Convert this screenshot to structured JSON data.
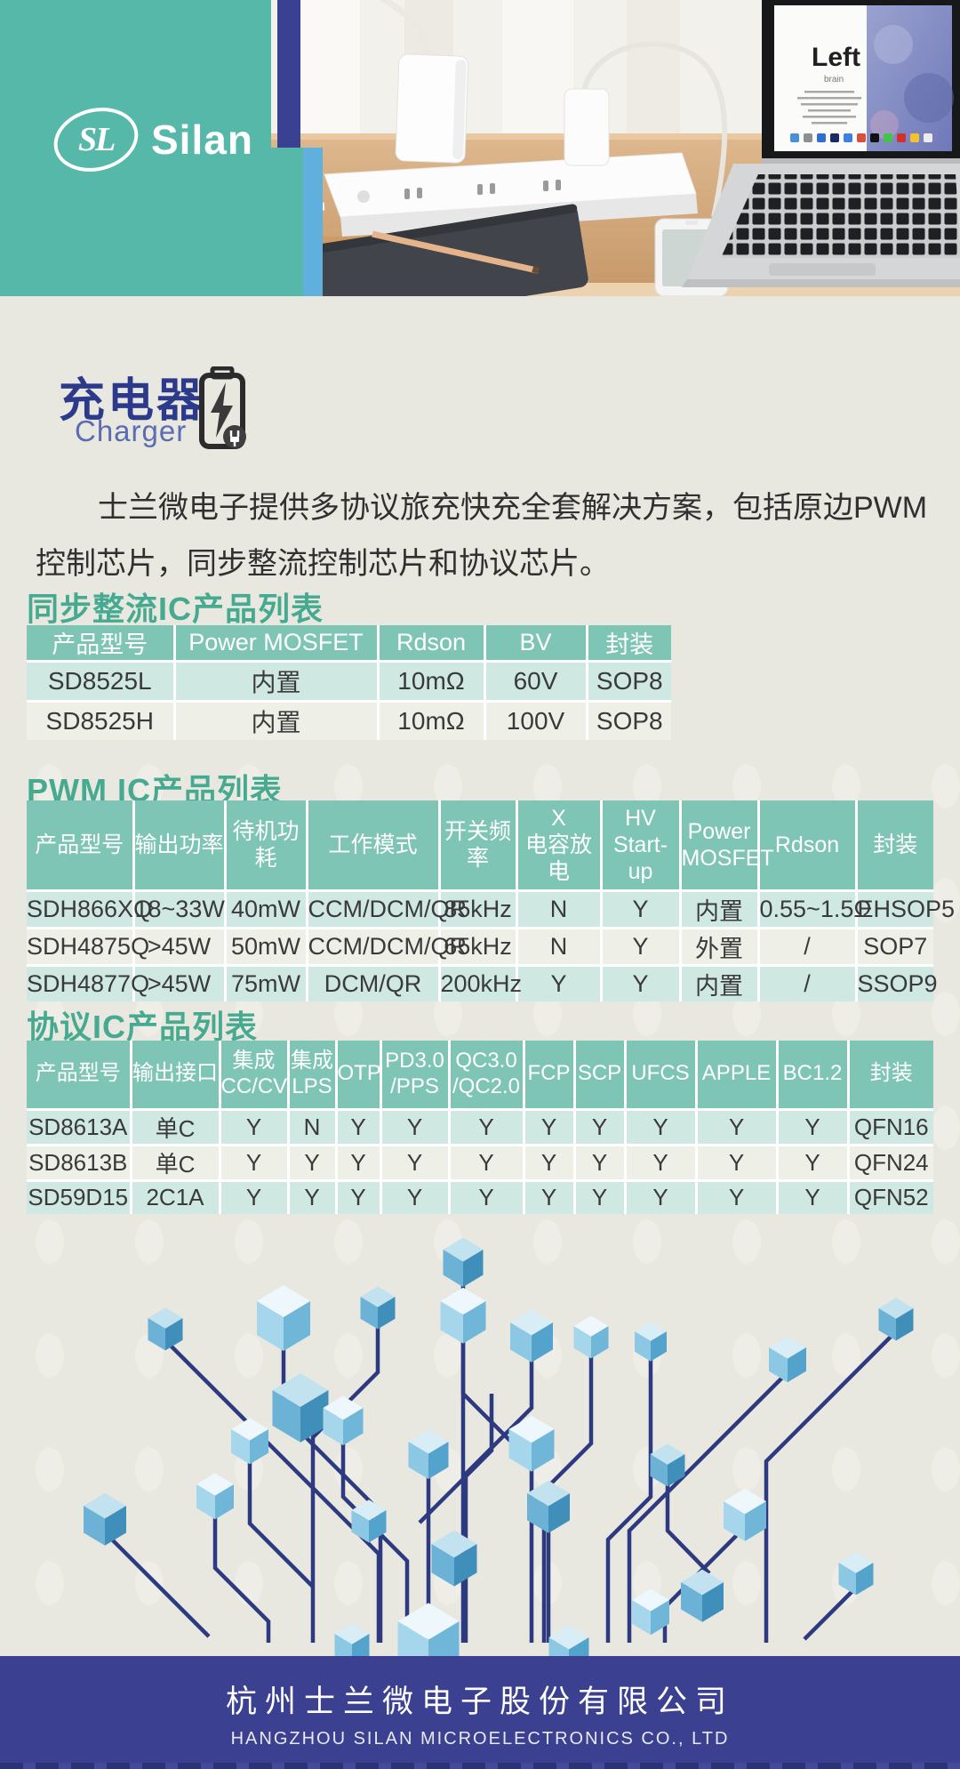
{
  "brand": {
    "monogram": "SL",
    "name": "Silan"
  },
  "photo": {
    "screen_title": "Left",
    "screen_subtitle": "brain"
  },
  "title": {
    "zh": "充电器",
    "en": "Charger"
  },
  "intro": "士兰微电子提供多协议旅充快充全套解决方案，包括原边PWM控制芯片，同步整流控制芯片和协议芯片。",
  "sections": [
    {
      "heading": "同步整流IC产品列表",
      "columns": [
        "产品型号",
        "Power MOSFET",
        "Rdson",
        "BV",
        "封装"
      ],
      "rows": [
        [
          "SD8525L",
          "内置",
          "10mΩ",
          "60V",
          "SOP8"
        ],
        [
          "SD8525H",
          "内置",
          "10mΩ",
          "100V",
          "SOP8"
        ]
      ]
    },
    {
      "heading": "PWM IC产品列表",
      "columns": [
        "产品型号",
        "输出功率",
        "待机功耗",
        "工作模式",
        "开关频率",
        "X\n电容放电",
        "HV\nStart-up",
        "Power\nMOSFET",
        "Rdson",
        "封装"
      ],
      "rows": [
        [
          "SDH866XQ",
          "18~33W",
          "40mW",
          "CCM/DCM/QR",
          "85kHz",
          "N",
          "Y",
          "内置",
          "0.55~1.5Ω",
          "EHSOP5"
        ],
        [
          "SDH4875Q",
          ">45W",
          "50mW",
          "CCM/DCM/QR",
          "65kHz",
          "N",
          "Y",
          "外置",
          "/",
          "SOP7"
        ],
        [
          "SDH4877Q",
          ">45W",
          "75mW",
          "DCM/QR",
          "200kHz",
          "Y",
          "Y",
          "内置",
          "/",
          "SSOP9"
        ]
      ]
    },
    {
      "heading": "协议IC产品列表",
      "columns": [
        "产品型号",
        "输出接口",
        "集成\nCC/CV",
        "集成\nLPS",
        "OTP",
        "PD3.0\n/PPS",
        "QC3.0\n/QC2.0",
        "FCP",
        "SCP",
        "UFCS",
        "APPLE",
        "BC1.2",
        "封装"
      ],
      "rows": [
        [
          "SD8613A",
          "单C",
          "Y",
          "N",
          "Y",
          "Y",
          "Y",
          "Y",
          "Y",
          "Y",
          "Y",
          "Y",
          "QFN16"
        ],
        [
          "SD8613B",
          "单C",
          "Y",
          "Y",
          "Y",
          "Y",
          "Y",
          "Y",
          "Y",
          "Y",
          "Y",
          "Y",
          "QFN24"
        ],
        [
          "SD59D15",
          "2C1A",
          "Y",
          "Y",
          "Y",
          "Y",
          "Y",
          "Y",
          "Y",
          "Y",
          "Y",
          "Y",
          "QFN52"
        ]
      ]
    }
  ],
  "footer": {
    "company_zh": "杭州士兰微电子股份有限公司",
    "company_en": "HANGZHOU SILAN MICROELECTRONICS CO., LTD"
  },
  "colors": {
    "teal": "#55b8a8",
    "navy": "#3b4192",
    "sky": "#5fb0dd",
    "section_heading": "#46aa90",
    "table_header": "#7fc5b5",
    "row_mint": "#cfe8e1",
    "row_pale": "#eef0e8",
    "title_navy": "#2c3a8c",
    "title_sub": "#5b6cb0",
    "footer_bg": "#3b4091"
  }
}
